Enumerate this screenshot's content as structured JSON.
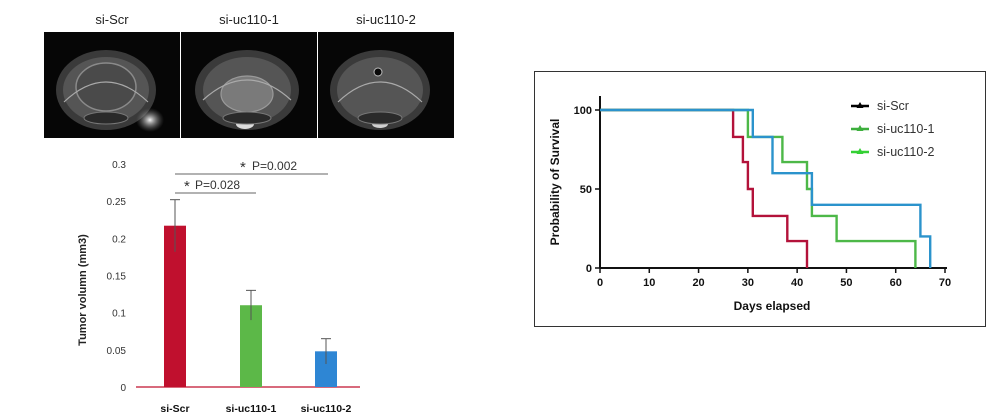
{
  "mri": {
    "labels": [
      "si-Scr",
      "si-uc110-1",
      "si-uc110-2"
    ]
  },
  "bar_chart_data": {
    "type": "bar",
    "categories": [
      "si-Scr",
      "si-uc110-1",
      "si-uc110-2"
    ],
    "values": [
      0.217,
      0.11,
      0.048
    ],
    "errors": [
      0.035,
      0.02,
      0.017
    ],
    "colors": [
      "#C0102E",
      "#5CB848",
      "#2E86D4"
    ],
    "ylabel": "Tumor volumn (mm3)",
    "ylim": [
      0,
      0.3
    ],
    "yticks": [
      "0",
      "0.05",
      "0.1",
      "0.15",
      "0.2",
      "0.25",
      "0.3"
    ],
    "significance": [
      {
        "text": "P=0.028",
        "marker": "*"
      },
      {
        "text": "P=0.002",
        "marker": "*"
      }
    ]
  },
  "chart_data": {
    "type": "line",
    "subtype": "kaplan-meier step",
    "xlabel": "Days elapsed",
    "ylabel": "Probability of Survival",
    "xlim": [
      0,
      70
    ],
    "ylim": [
      0,
      100
    ],
    "xticks": [
      "0",
      "10",
      "20",
      "30",
      "40",
      "50",
      "60",
      "70"
    ],
    "yticks": [
      "0",
      "50",
      "100"
    ],
    "legend_position": "top-right",
    "legend": [
      {
        "name": "si-Scr",
        "color": "#000000"
      },
      {
        "name": "si-uc110-1",
        "color": "#3DAF3D"
      },
      {
        "name": "si-uc110-2",
        "color": "#35D035"
      }
    ],
    "series": [
      {
        "name": "si-Scr",
        "color": "#B3123A",
        "points": [
          [
            0,
            100
          ],
          [
            27,
            100
          ],
          [
            27,
            83
          ],
          [
            29,
            83
          ],
          [
            29,
            67
          ],
          [
            30,
            67
          ],
          [
            30,
            50
          ],
          [
            31,
            50
          ],
          [
            31,
            33
          ],
          [
            38,
            33
          ],
          [
            38,
            17
          ],
          [
            42,
            17
          ],
          [
            42,
            0
          ]
        ]
      },
      {
        "name": "si-uc110-1",
        "color": "#4DB848",
        "points": [
          [
            0,
            100
          ],
          [
            30,
            100
          ],
          [
            30,
            83
          ],
          [
            37,
            83
          ],
          [
            37,
            67
          ],
          [
            42,
            67
          ],
          [
            42,
            50
          ],
          [
            43,
            50
          ],
          [
            43,
            33
          ],
          [
            48,
            33
          ],
          [
            48,
            17
          ],
          [
            64,
            17
          ],
          [
            64,
            0
          ]
        ]
      },
      {
        "name": "si-uc110-2",
        "color": "#2B93CC",
        "points": [
          [
            0,
            100
          ],
          [
            31,
            100
          ],
          [
            31,
            83
          ],
          [
            35,
            83
          ],
          [
            35,
            60
          ],
          [
            43,
            60
          ],
          [
            43,
            40
          ],
          [
            65,
            40
          ],
          [
            65,
            20
          ],
          [
            67,
            20
          ],
          [
            67,
            0
          ]
        ]
      }
    ]
  }
}
